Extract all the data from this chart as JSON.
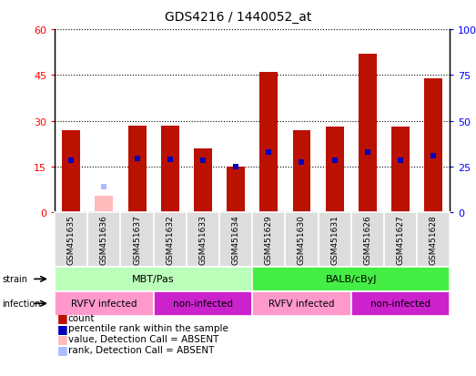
{
  "title": "GDS4216 / 1440052_at",
  "samples": [
    "GSM451635",
    "GSM451636",
    "GSM451637",
    "GSM451632",
    "GSM451633",
    "GSM451634",
    "GSM451629",
    "GSM451630",
    "GSM451631",
    "GSM451626",
    "GSM451627",
    "GSM451628"
  ],
  "count_values": [
    27,
    null,
    28.5,
    28.5,
    21,
    15,
    46,
    27,
    28,
    52,
    28,
    44
  ],
  "count_absent": [
    null,
    5.5,
    null,
    null,
    null,
    null,
    null,
    null,
    null,
    null,
    null,
    null
  ],
  "rank_values": [
    28.5,
    null,
    29.5,
    29,
    28.5,
    25,
    33,
    27.5,
    28.5,
    33,
    28.5,
    31
  ],
  "rank_absent": [
    null,
    14,
    null,
    null,
    null,
    null,
    null,
    null,
    null,
    null,
    null,
    null
  ],
  "ylim_left": [
    0,
    60
  ],
  "ylim_right": [
    0,
    100
  ],
  "yticks_left": [
    0,
    15,
    30,
    45,
    60
  ],
  "yticks_right": [
    0,
    25,
    50,
    75,
    100
  ],
  "yticklabels_right": [
    "0",
    "25",
    "50",
    "75",
    "100%"
  ],
  "strain_groups": [
    {
      "label": "MBT/Pas",
      "start": 0,
      "end": 6,
      "color": "#BBFFBB"
    },
    {
      "label": "BALB/cByJ",
      "start": 6,
      "end": 12,
      "color": "#44EE44"
    }
  ],
  "infection_groups": [
    {
      "label": "RVFV infected",
      "start": 0,
      "end": 3,
      "color": "#FF88CC"
    },
    {
      "label": "non-infected",
      "start": 3,
      "end": 6,
      "color": "#EE22EE"
    },
    {
      "label": "RVFV infected",
      "start": 6,
      "end": 9,
      "color": "#FF88CC"
    },
    {
      "label": "non-infected",
      "start": 9,
      "end": 12,
      "color": "#EE22EE"
    }
  ],
  "bar_color": "#BB1100",
  "bar_absent_color": "#FFBBBB",
  "rank_color": "#0000BB",
  "rank_absent_color": "#AABBFF",
  "bg_color": "#FFFFFF",
  "bar_width": 0.55,
  "rank_marker_size": 5
}
